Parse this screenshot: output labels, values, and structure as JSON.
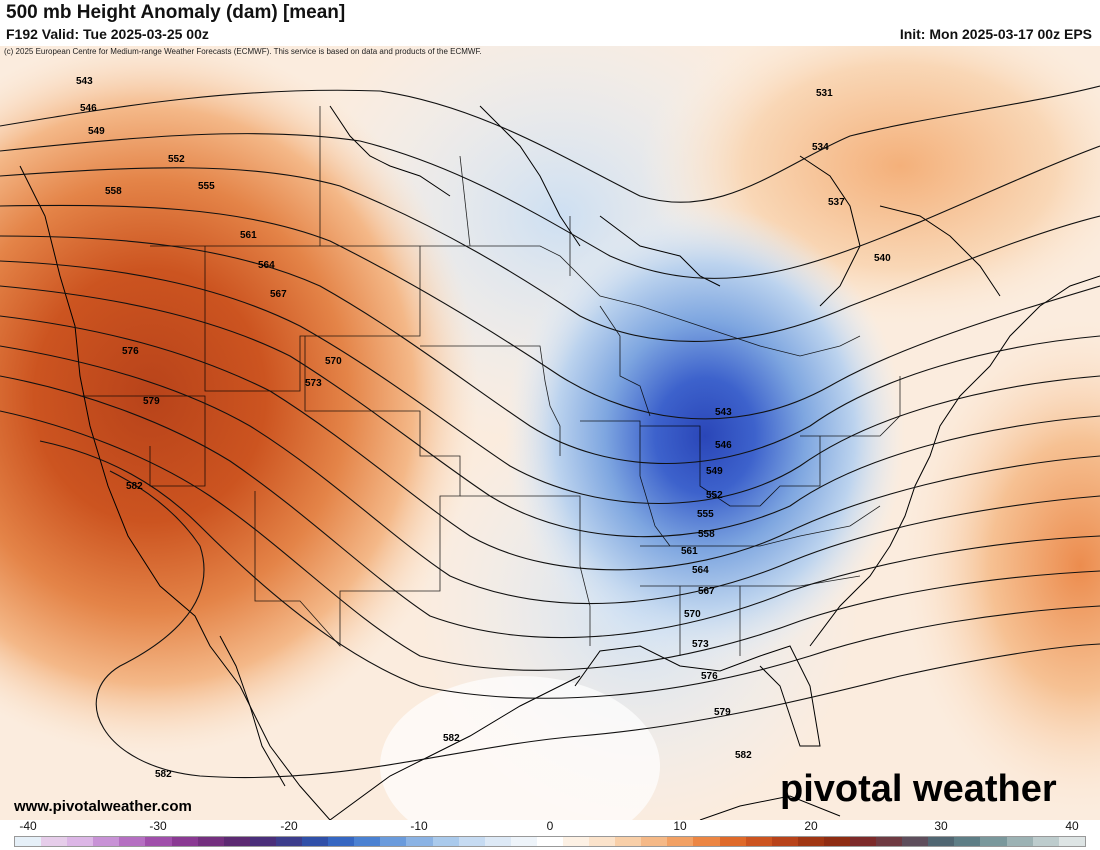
{
  "header": {
    "title": "500 mb Height Anomaly (dam) [mean]",
    "valid": "F192 Valid: Tue 2025-03-25 00z",
    "init": "Init: Mon 2025-03-17 00z EPS",
    "credit": "(c) 2025 European Centre for Medium-range Weather Forecasts (ECMWF). This service is based on data and products of the ECMWF."
  },
  "footer": {
    "website": "www.pivotalweather.com",
    "logo": "pivotal weather"
  },
  "colorbar": {
    "tick_labels": [
      "-40",
      "-30",
      "-20",
      "-10",
      "0",
      "10",
      "20",
      "30",
      "40"
    ],
    "colors": [
      "#e6f0f8",
      "#e6cdea",
      "#dcb6e6",
      "#c892d6",
      "#b56fc2",
      "#a04fab",
      "#8a3a93",
      "#74307f",
      "#5c2a72",
      "#4a2f7a",
      "#3c3d8c",
      "#3050a8",
      "#3567c2",
      "#4a81d2",
      "#6a9bdc",
      "#8bb3e4",
      "#aacaec",
      "#c6dbf2",
      "#dde9f6",
      "#eef4fa",
      "#ffffff",
      "#fdf1e4",
      "#fbe3cb",
      "#f8cfa8",
      "#f5b987",
      "#f2a164",
      "#ec8643",
      "#df6a2a",
      "#cc5420",
      "#b8431a",
      "#a03613",
      "#8e2c12",
      "#7c2a2a",
      "#6e3a42",
      "#5e4e5c",
      "#506672",
      "#5e7e86",
      "#7a989c",
      "#9cb2b4",
      "#bdcccd",
      "#dde4e4"
    ]
  },
  "map": {
    "anomaly_colors": {
      "strong_pos": "#c54a1c",
      "pos": "#e68a4c",
      "weak_pos": "#f6c9a3",
      "neutral": "#ffffff",
      "weak_neg": "#cddff2",
      "neg": "#7ea6e0",
      "strong_neg": "#2e4fbc"
    },
    "contours": [
      {
        "value": "531",
        "label": "531"
      },
      {
        "value": "534",
        "label": "534"
      },
      {
        "value": "537",
        "label": "537"
      },
      {
        "value": "540",
        "label": "540"
      },
      {
        "value": "543",
        "label": "543"
      },
      {
        "value": "546",
        "label": "546"
      },
      {
        "value": "549",
        "label": "549"
      },
      {
        "value": "552",
        "label": "552"
      },
      {
        "value": "555",
        "label": "555"
      },
      {
        "value": "558",
        "label": "558"
      },
      {
        "value": "561",
        "label": "561"
      },
      {
        "value": "564",
        "label": "564"
      },
      {
        "value": "567",
        "label": "567"
      },
      {
        "value": "570",
        "label": "570"
      },
      {
        "value": "573",
        "label": "573"
      },
      {
        "value": "576",
        "label": "576"
      },
      {
        "value": "579",
        "label": "579"
      },
      {
        "value": "582",
        "label": "582"
      }
    ]
  }
}
